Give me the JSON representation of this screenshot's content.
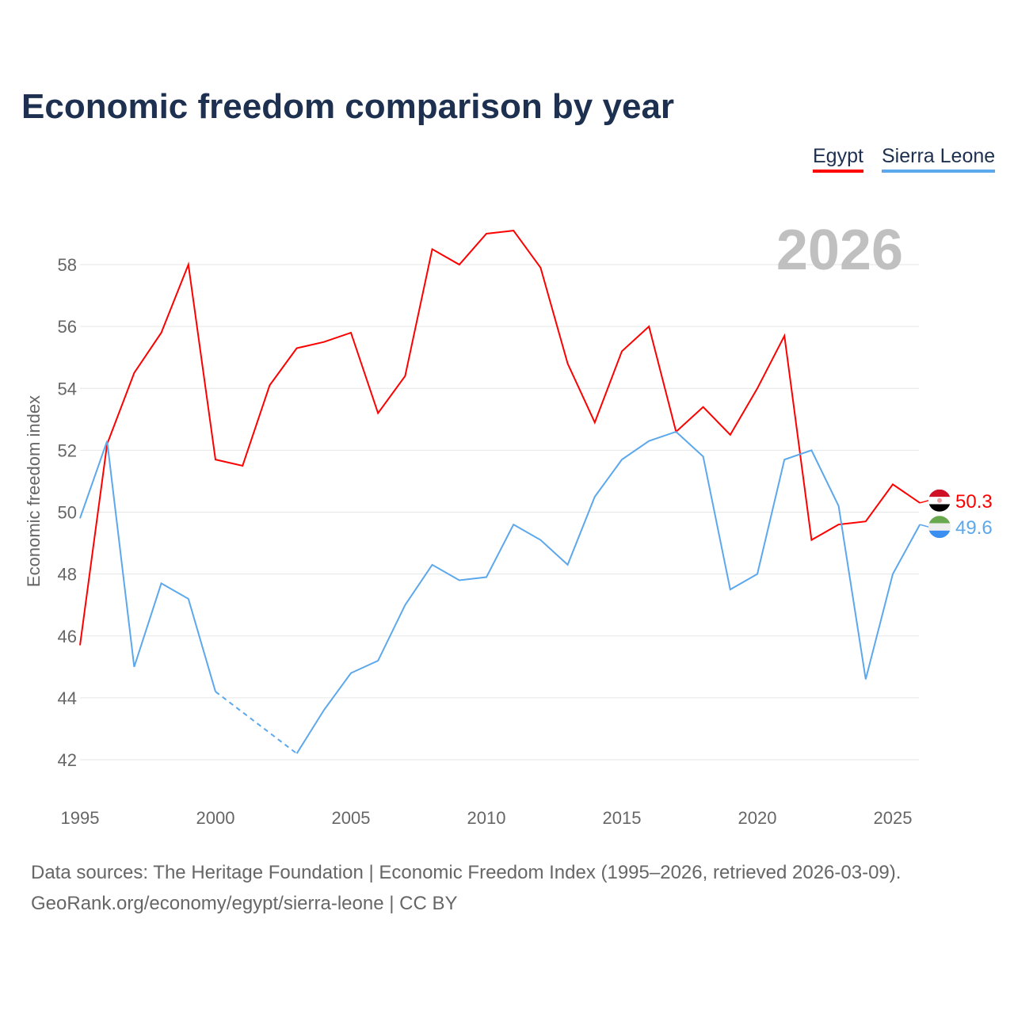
{
  "title": "Economic freedom comparison by year",
  "footer": {
    "line1": "Data sources: The Heritage Foundation | Economic Freedom Index (1995–2026, retrieved 2026-03-09).",
    "line2": "GeoRank.org/economy/egypt/sierra-leone | CC BY"
  },
  "chart_data": {
    "type": "line",
    "title": "Economic freedom comparison by year",
    "ylabel": "Economic freedom index",
    "xlabel": "",
    "year_watermark": "2026",
    "ylim": [
      41,
      59.5
    ],
    "xlim": [
      1995,
      2026
    ],
    "yticks": [
      "42",
      "44",
      "46",
      "48",
      "50",
      "52",
      "54",
      "56",
      "58"
    ],
    "xticks": [
      "1995",
      "2000",
      "2005",
      "2010",
      "2015",
      "2020",
      "2025"
    ],
    "grid": true,
    "legend_position": "top-right",
    "x": [
      1995,
      1996,
      1997,
      1998,
      1999,
      2000,
      2001,
      2002,
      2003,
      2004,
      2005,
      2006,
      2007,
      2008,
      2009,
      2010,
      2011,
      2012,
      2013,
      2014,
      2015,
      2016,
      2017,
      2018,
      2019,
      2020,
      2021,
      2022,
      2023,
      2024,
      2025,
      2026
    ],
    "series": [
      {
        "name": "Egypt",
        "color": "#ff0000",
        "end_label": "50.3",
        "values": [
          45.7,
          52.2,
          54.5,
          55.8,
          58.0,
          51.7,
          51.5,
          54.1,
          55.3,
          55.5,
          55.8,
          53.2,
          54.4,
          58.5,
          58.0,
          59.0,
          59.1,
          57.9,
          54.8,
          52.9,
          55.2,
          56.0,
          52.6,
          53.4,
          52.5,
          54.0,
          55.7,
          49.1,
          49.6,
          49.7,
          50.9,
          50.3
        ]
      },
      {
        "name": "Sierra Leone",
        "color": "#5ca8ec",
        "end_label": "49.6",
        "values": [
          49.8,
          52.3,
          45.0,
          47.7,
          47.2,
          44.2,
          null,
          null,
          42.2,
          43.6,
          44.8,
          45.2,
          47.0,
          48.3,
          47.8,
          47.9,
          49.6,
          49.1,
          48.3,
          50.5,
          51.7,
          52.3,
          52.6,
          51.8,
          47.5,
          48.0,
          51.7,
          52.0,
          50.2,
          44.6,
          48.0,
          49.6
        ]
      }
    ]
  }
}
